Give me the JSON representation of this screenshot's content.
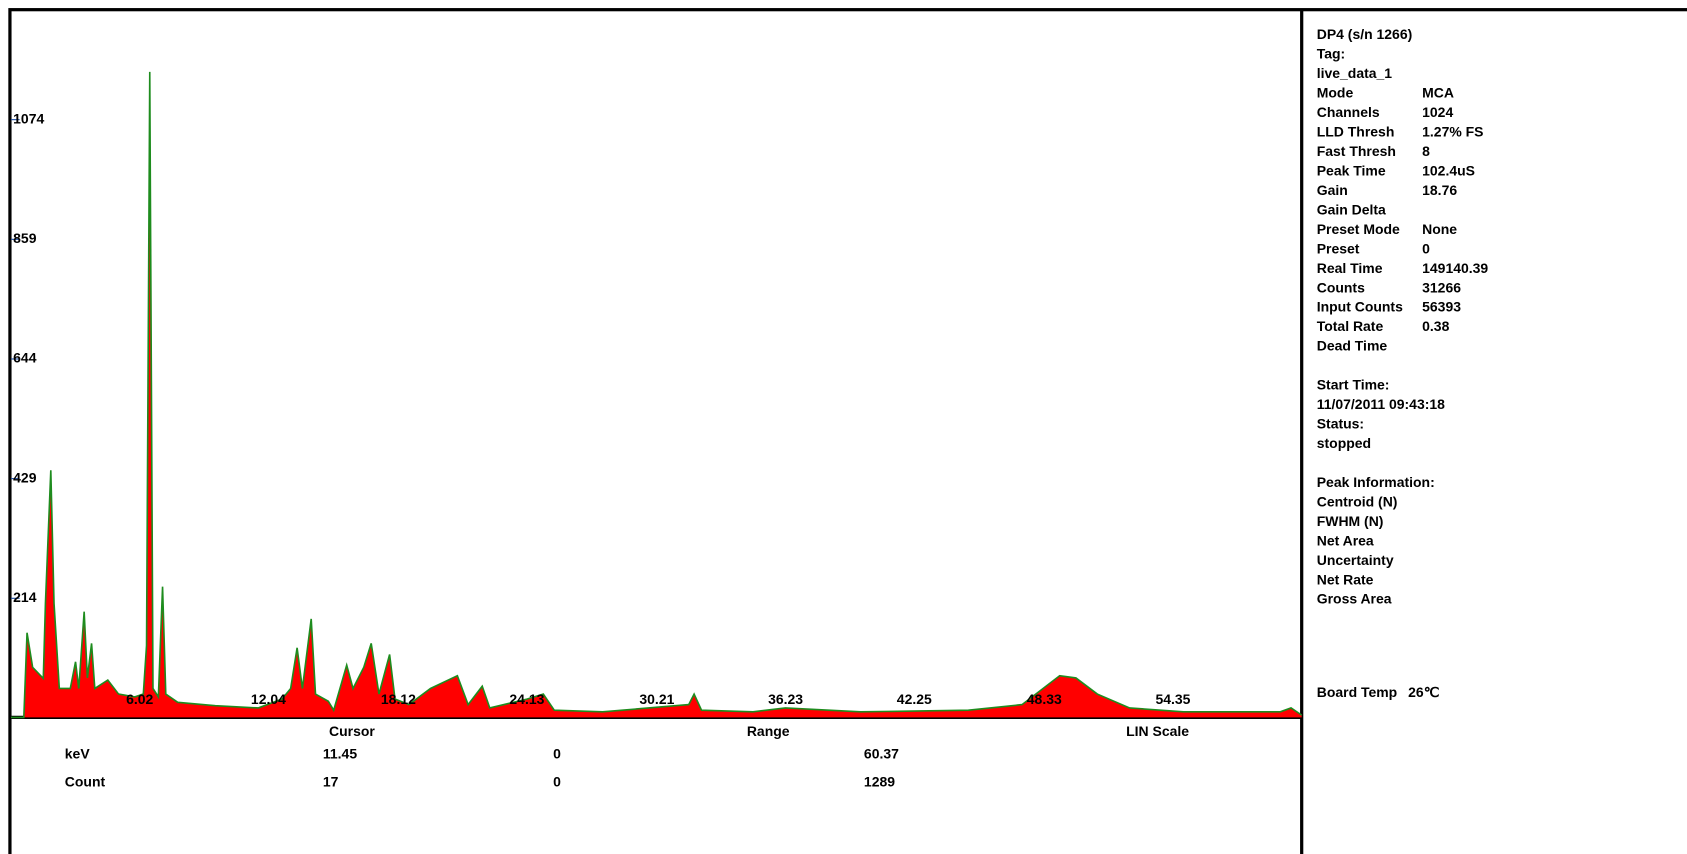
{
  "chart_data": {
    "type": "area",
    "x": [
      0,
      0.6,
      0.75,
      1.01,
      1.51,
      1.61,
      1.86,
      2.01,
      2.26,
      2.77,
      3.02,
      3.17,
      3.42,
      3.57,
      3.77,
      3.92,
      4.53,
      5.03,
      5.79,
      6.19,
      6.34,
      6.49,
      6.64,
      6.89,
      7.09,
      7.24,
      7.8,
      9.56,
      11.57,
      12.68,
      13.08,
      13.38,
      13.63,
      14.04,
      14.24,
      14.84,
      15.09,
      15.7,
      16.0,
      16.5,
      16.85,
      17.21,
      17.71,
      17.96,
      18.61,
      19.62,
      20.88,
      21.38,
      22.04,
      22.39,
      24.15,
      24.9,
      25.41,
      27.67,
      31.7,
      31.95,
      32.3,
      34.71,
      36.22,
      39.74,
      44.78,
      47.29,
      49.05,
      49.81,
      50.81,
      52.32,
      54.84,
      59.37,
      59.87,
      60.37
    ],
    "values": [
      0,
      0,
      152,
      90,
      70,
      205,
      444,
      205,
      52,
      52,
      100,
      52,
      190,
      71,
      133,
      52,
      67,
      42,
      37,
      42,
      129,
      1160,
      52,
      37,
      235,
      42,
      27,
      21,
      17,
      33,
      52,
      125,
      52,
      177,
      42,
      29,
      13,
      94,
      52,
      90,
      133,
      42,
      113,
      33,
      23,
      52,
      75,
      23,
      56,
      17,
      33,
      42,
      13,
      10,
      23,
      42,
      13,
      10,
      17,
      10,
      13,
      23,
      75,
      71,
      42,
      17,
      10,
      10,
      17,
      4
    ],
    "color": "#ff0000",
    "line_color": "#1e8c1e",
    "xlim": [
      0,
      60.37
    ],
    "xticks": [
      6.02,
      12.04,
      18.12,
      24.13,
      30.21,
      36.23,
      42.25,
      48.33,
      54.35
    ],
    "ylim": [
      0,
      1289
    ],
    "yticks": [
      214,
      429,
      644,
      859,
      1074
    ]
  },
  "readout": {
    "headers": [
      "Cursor",
      "Range",
      "LIN Scale"
    ],
    "rows": [
      [
        "keV",
        "11.45",
        "0",
        "60.37"
      ],
      [
        "Count",
        "17",
        "0",
        "1289"
      ]
    ]
  },
  "panel": {
    "header": [
      "DP4 (s/n    1266)",
      "Tag:",
      "live_data_1"
    ],
    "params": [
      {
        "label": "Mode",
        "value": "MCA"
      },
      {
        "label": "Channels",
        "value": "1024"
      },
      {
        "label": "LLD Thresh",
        "value": "1.27% FS"
      },
      {
        "label": "Fast Thresh",
        "value": "8"
      },
      {
        "label": "Peak Time",
        "value": "102.4uS"
      },
      {
        "label": "Gain",
        "value": "18.76"
      },
      {
        "label": "Gain Delta"
      },
      {
        "label": "Preset Mode",
        "value": "None"
      },
      {
        "label": "Preset",
        "value": "0"
      },
      {
        "label": "Real Time",
        "value": "149140.39"
      },
      {
        "label": "Counts",
        "value": "31266"
      },
      {
        "label": "Input Counts",
        "value": "56393"
      },
      {
        "label": "Total Rate",
        "value": "0.38"
      },
      {
        "label": "Dead Time"
      }
    ],
    "status": [
      "Start Time:",
      "11/07/2011 09:43:18",
      "Status:",
      "stopped"
    ],
    "peak": [
      "Peak Information:",
      "Centroid (N)",
      "FWHM (N)",
      "Net Area",
      "Uncertainty",
      "Net Rate",
      "Gross Area"
    ],
    "board_temp": {
      "label": "Board Temp",
      "value": "26℃"
    }
  }
}
